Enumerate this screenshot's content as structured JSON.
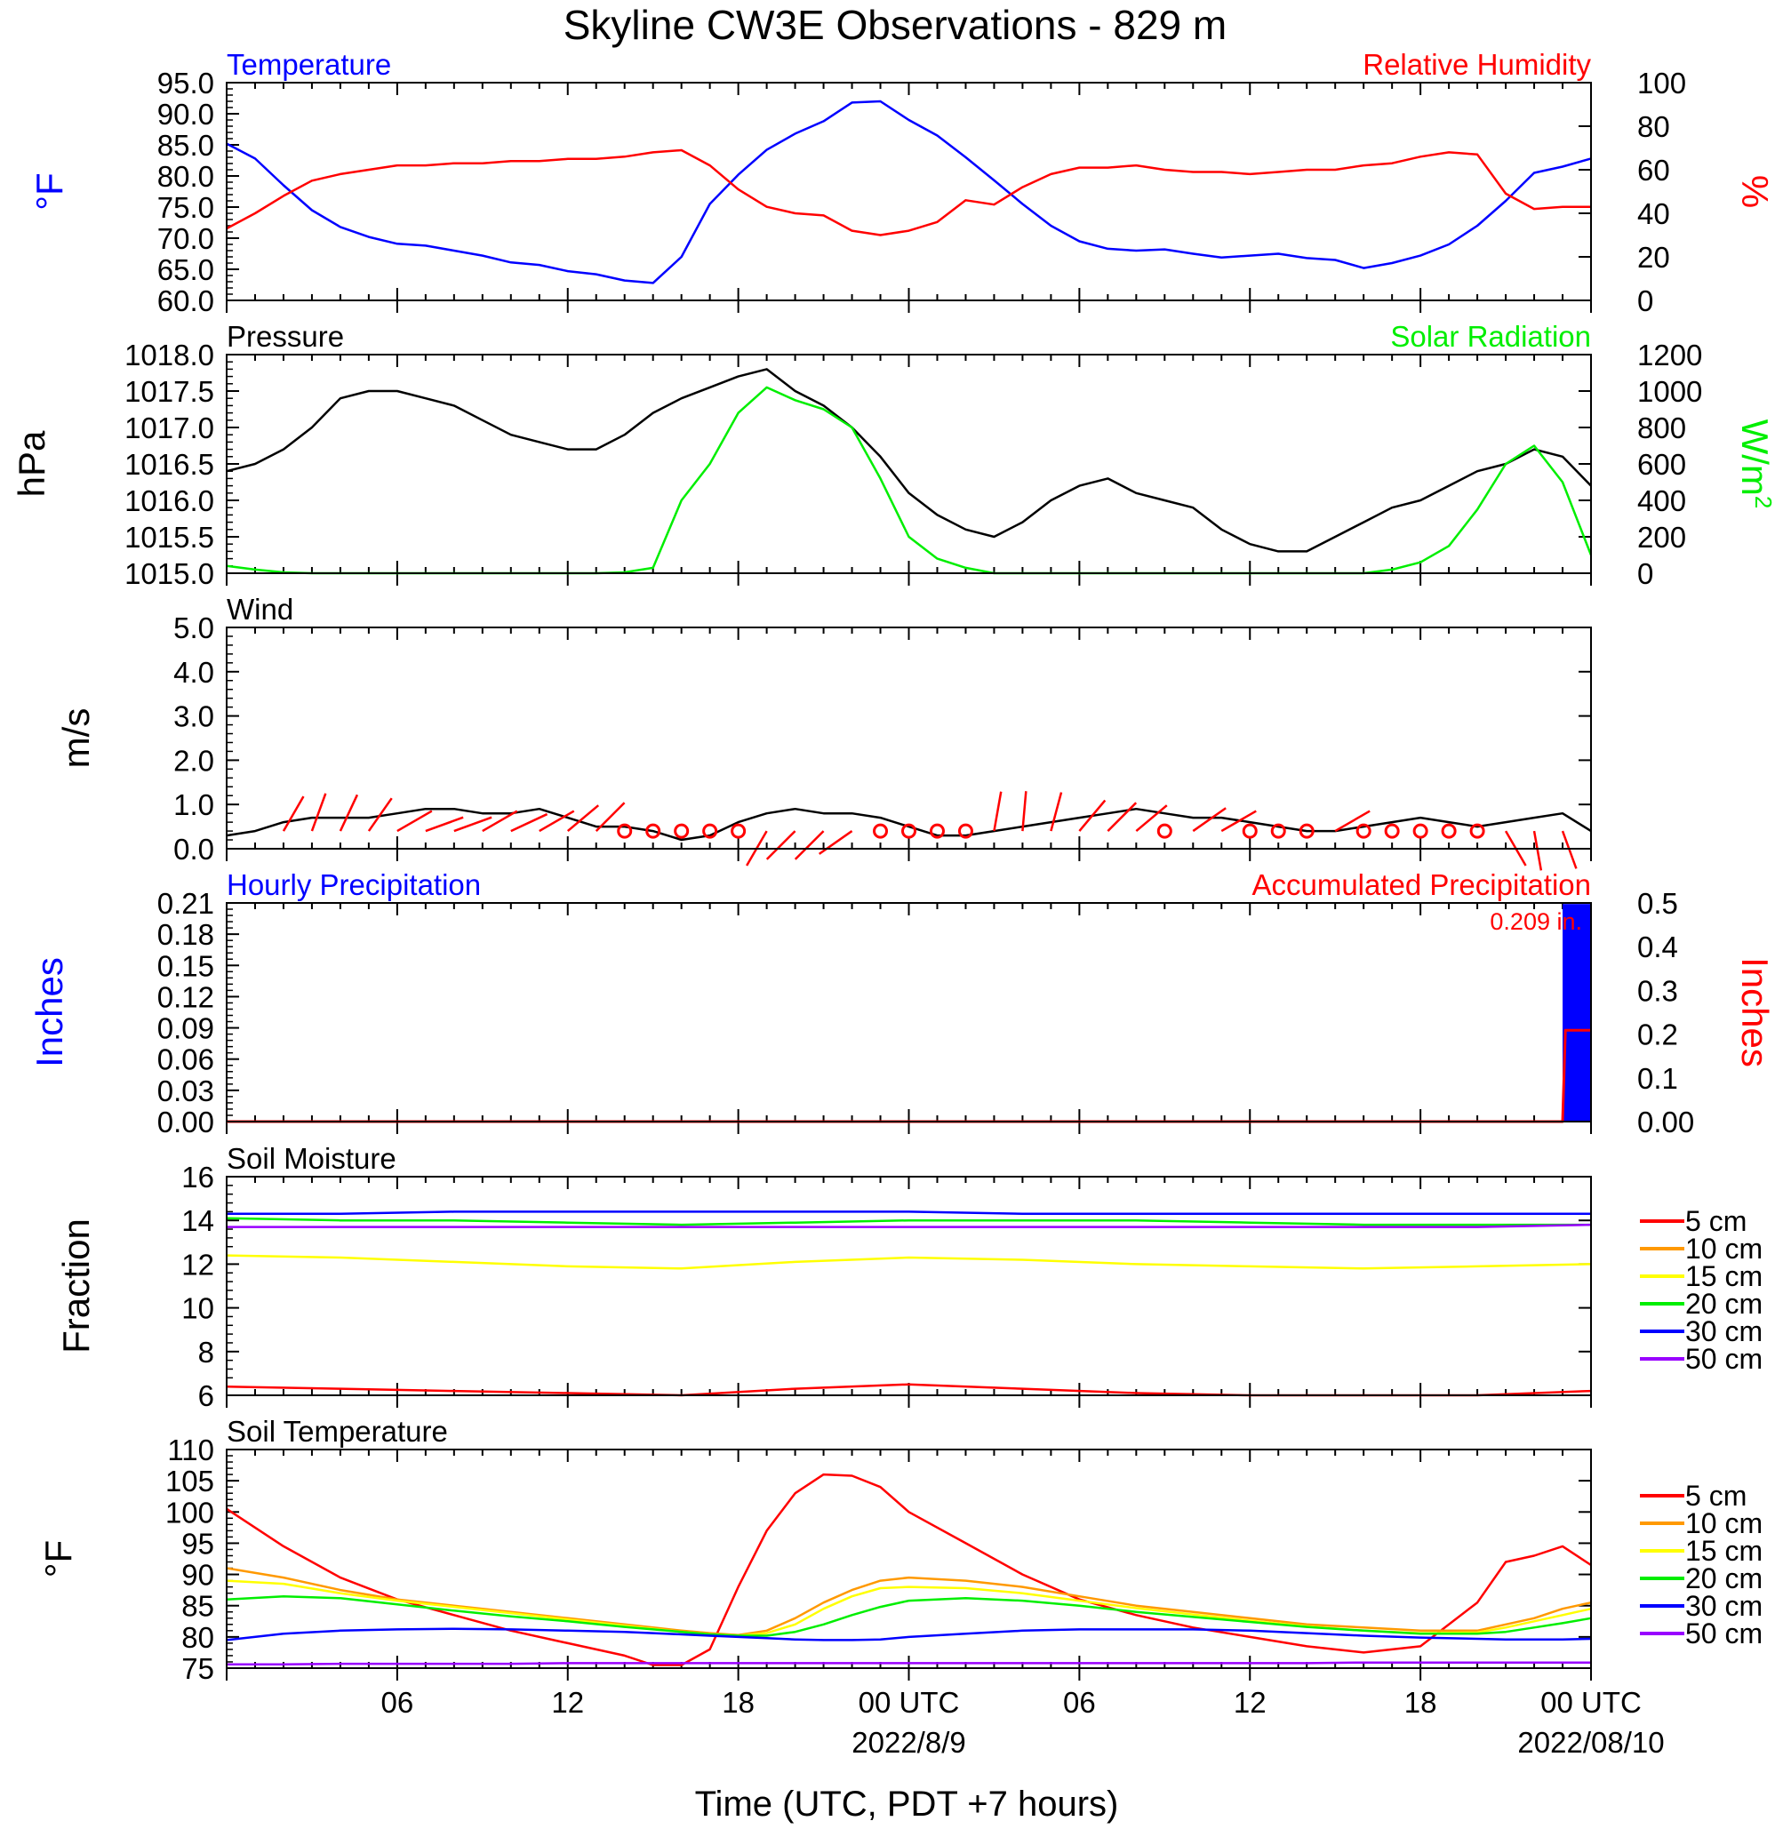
{
  "figure": {
    "title": "Skyline CW3E Observations - 829 m",
    "xlabel": "Time (UTC, PDT +7 hours)",
    "x_tick_labels": [
      "06",
      "12",
      "18",
      "00 UTC",
      "06",
      "12",
      "18",
      "00 UTC"
    ],
    "date_labels": [
      "2022/8/9",
      "2022/08/10"
    ]
  },
  "chart_data": [
    {
      "id": "temp_rh",
      "type": "line",
      "title_left": "Temperature",
      "title_right": "Relative Humidity",
      "ylabel_left": "°F",
      "ylabel_right": "%",
      "ylim_left": [
        60,
        95
      ],
      "ylim_right": [
        0,
        100
      ],
      "yticks_left": [
        "60.0",
        "65.0",
        "70.0",
        "75.0",
        "80.0",
        "85.0",
        "90.0",
        "95.0"
      ],
      "yticks_right": [
        "0",
        "20",
        "40",
        "60",
        "80",
        "100"
      ],
      "x_hours": [
        0,
        1,
        2,
        3,
        4,
        5,
        6,
        7,
        8,
        9,
        10,
        11,
        12,
        13,
        14,
        15,
        16,
        17,
        18,
        19,
        20,
        21,
        22,
        23,
        24,
        25,
        26,
        27,
        28,
        29,
        30,
        31,
        32,
        33,
        34,
        35,
        36,
        37,
        38,
        39,
        40,
        41,
        42,
        43,
        44,
        45,
        46,
        47,
        48
      ],
      "series": [
        {
          "axis": "left",
          "color": "#0000ff",
          "values": [
            85.2,
            82.8,
            78.5,
            74.5,
            71.8,
            70.2,
            69.1,
            68.8,
            68.0,
            67.2,
            66.1,
            65.7,
            64.7,
            64.2,
            63.2,
            62.8,
            67.0,
            75.5,
            80.2,
            84.2,
            86.8,
            88.8,
            91.8,
            92.0,
            89.0,
            86.5,
            83.0,
            79.3,
            75.5,
            72.0,
            69.5,
            68.3,
            68.0,
            68.2,
            67.5,
            66.9,
            67.2,
            67.5,
            66.8,
            66.5,
            65.2,
            66.0,
            67.2,
            69.0,
            72.0,
            76.0,
            80.5,
            81.5,
            82.8
          ]
        },
        {
          "axis": "right",
          "color": "#ff0000",
          "values": [
            33,
            40,
            48,
            55,
            58,
            60,
            62,
            62,
            63,
            63,
            64,
            64,
            65,
            65,
            66,
            68,
            69,
            62,
            51,
            43,
            40,
            39,
            32,
            30,
            32,
            36,
            46,
            44,
            52,
            58,
            61,
            61,
            62,
            60,
            59,
            59,
            58,
            59,
            60,
            60,
            62,
            63,
            66,
            68,
            67,
            49,
            42,
            43,
            43
          ]
        }
      ]
    },
    {
      "id": "pressure_solar",
      "type": "line",
      "title_left": "Pressure",
      "title_right": "Solar Radiation",
      "ylabel_left": "hPa",
      "ylabel_right": "W/m",
      "ylabel_right_sup": "2",
      "ylim_left": [
        1015.0,
        1018.0
      ],
      "ylim_right": [
        0,
        1200
      ],
      "yticks_left": [
        "1015.0",
        "1015.5",
        "1016.0",
        "1016.5",
        "1017.0",
        "1017.5",
        "1018.0"
      ],
      "yticks_right": [
        "0",
        "200",
        "400",
        "600",
        "800",
        "1000",
        "1200"
      ],
      "x_hours": [
        0,
        1,
        2,
        3,
        4,
        5,
        6,
        7,
        8,
        9,
        10,
        11,
        12,
        13,
        14,
        15,
        16,
        17,
        18,
        19,
        20,
        21,
        22,
        23,
        24,
        25,
        26,
        27,
        28,
        29,
        30,
        31,
        32,
        33,
        34,
        35,
        36,
        37,
        38,
        39,
        40,
        41,
        42,
        43,
        44,
        45,
        46,
        47,
        48
      ],
      "series": [
        {
          "axis": "left",
          "color": "#000000",
          "values": [
            1016.4,
            1016.5,
            1016.7,
            1017.0,
            1017.4,
            1017.5,
            1017.5,
            1017.4,
            1017.3,
            1017.1,
            1016.9,
            1016.8,
            1016.7,
            1016.7,
            1016.9,
            1017.2,
            1017.4,
            1017.55,
            1017.7,
            1017.8,
            1017.5,
            1017.3,
            1017.0,
            1016.6,
            1016.1,
            1015.8,
            1015.6,
            1015.5,
            1015.7,
            1016.0,
            1016.2,
            1016.3,
            1016.1,
            1016.0,
            1015.9,
            1015.6,
            1015.4,
            1015.3,
            1015.3,
            1015.5,
            1015.7,
            1015.9,
            1016.0,
            1016.2,
            1016.4,
            1016.5,
            1016.7,
            1016.6,
            1016.2
          ]
        },
        {
          "axis": "right",
          "color": "#00ee00",
          "values": [
            40,
            20,
            5,
            0,
            0,
            0,
            0,
            0,
            0,
            0,
            0,
            0,
            0,
            0,
            5,
            30,
            400,
            600,
            880,
            1020,
            950,
            900,
            800,
            520,
            200,
            80,
            30,
            0,
            0,
            0,
            0,
            0,
            0,
            0,
            0,
            0,
            0,
            0,
            0,
            0,
            0,
            20,
            60,
            150,
            350,
            600,
            700,
            500,
            100
          ]
        }
      ]
    },
    {
      "id": "wind",
      "type": "line",
      "title_left": "Wind",
      "ylabel_left": "m/s",
      "ylim_left": [
        0,
        5
      ],
      "yticks_left": [
        "0.0",
        "1.0",
        "2.0",
        "3.0",
        "4.0",
        "5.0"
      ],
      "x_hours": [
        0,
        1,
        2,
        3,
        4,
        5,
        6,
        7,
        8,
        9,
        10,
        11,
        12,
        13,
        14,
        15,
        16,
        17,
        18,
        19,
        20,
        21,
        22,
        23,
        24,
        25,
        26,
        27,
        28,
        29,
        30,
        31,
        32,
        33,
        34,
        35,
        36,
        37,
        38,
        39,
        40,
        41,
        42,
        43,
        44,
        45,
        46,
        47,
        48
      ],
      "series": [
        {
          "axis": "left",
          "color": "#000000",
          "values": [
            0.3,
            0.4,
            0.6,
            0.7,
            0.7,
            0.7,
            0.8,
            0.9,
            0.9,
            0.8,
            0.8,
            0.9,
            0.7,
            0.5,
            0.5,
            0.4,
            0.2,
            0.3,
            0.6,
            0.8,
            0.9,
            0.8,
            0.8,
            0.7,
            0.5,
            0.3,
            0.3,
            0.4,
            0.5,
            0.6,
            0.7,
            0.8,
            0.9,
            0.8,
            0.7,
            0.7,
            0.6,
            0.5,
            0.4,
            0.4,
            0.5,
            0.6,
            0.7,
            0.6,
            0.5,
            0.6,
            0.7,
            0.8,
            0.4
          ]
        }
      ],
      "barbs_x_hours": [
        2,
        3,
        4,
        5,
        6,
        7,
        8,
        9,
        10,
        11,
        12,
        13,
        14,
        15,
        16,
        17,
        18,
        19,
        20,
        21,
        22,
        23,
        24,
        25,
        26,
        27,
        28,
        29,
        30,
        31,
        32,
        33,
        34,
        35,
        36,
        37,
        38,
        39,
        40,
        41,
        42,
        43,
        44,
        45,
        46,
        47
      ],
      "barbs_deg": [
        30,
        20,
        25,
        35,
        60,
        70,
        70,
        60,
        65,
        60,
        50,
        45,
        45,
        0,
        0,
        0,
        0,
        210,
        225,
        225,
        235,
        0,
        0,
        0,
        0,
        10,
        5,
        15,
        40,
        45,
        50,
        0,
        55,
        60,
        0,
        0,
        0,
        60,
        0,
        0,
        0,
        0,
        0,
        150,
        170,
        160
      ],
      "barbs_calm": [
        false,
        false,
        false,
        false,
        false,
        false,
        false,
        false,
        false,
        false,
        false,
        false,
        true,
        true,
        true,
        true,
        true,
        false,
        false,
        false,
        false,
        true,
        true,
        true,
        true,
        false,
        false,
        false,
        false,
        false,
        false,
        true,
        false,
        false,
        true,
        true,
        true,
        false,
        true,
        true,
        true,
        true,
        true,
        false,
        false,
        false
      ]
    },
    {
      "id": "precip",
      "type": "bar",
      "title_left": "Hourly Precipitation",
      "title_right": "Accumulated Precipitation",
      "ylabel_left": "Inches",
      "ylabel_right": "Inches",
      "ylim_left": [
        0,
        0.21
      ],
      "ylim_right": [
        0,
        0.5
      ],
      "yticks_left": [
        "0.00",
        "0.03",
        "0.06",
        "0.09",
        "0.12",
        "0.15",
        "0.18",
        "0.21"
      ],
      "yticks_right": [
        "0.00",
        "0.1",
        "0.2",
        "0.3",
        "0.4",
        "0.5"
      ],
      "hourly_bar": {
        "start_hour": 47,
        "end_hour": 48,
        "value": 0.209,
        "color": "#0000ff"
      },
      "accumulated": {
        "color": "#ff0000",
        "x_hours": [
          0,
          47,
          47.1,
          48
        ],
        "values": [
          0,
          0,
          0.209,
          0.209
        ]
      },
      "annotation": "0.209 in."
    },
    {
      "id": "soil_moisture",
      "type": "line",
      "title_left": "Soil Moisture",
      "ylabel_left": "Fraction",
      "ylim_left": [
        6,
        16
      ],
      "yticks_left": [
        "6",
        "8",
        "10",
        "12",
        "14",
        "16"
      ],
      "x_hours": [
        0,
        4,
        8,
        12,
        16,
        20,
        24,
        28,
        32,
        36,
        40,
        44,
        48
      ],
      "series": [
        {
          "name": "5 cm",
          "color": "#ff0000",
          "values": [
            6.4,
            6.3,
            6.2,
            6.1,
            6.0,
            6.3,
            6.5,
            6.3,
            6.1,
            6.0,
            6.0,
            6.0,
            6.2
          ]
        },
        {
          "name": "10 cm",
          "color": "#ff9900",
          "values": [
            null,
            null,
            null,
            null,
            null,
            null,
            null,
            null,
            null,
            null,
            null,
            null,
            null
          ]
        },
        {
          "name": "15 cm",
          "color": "#ffff00",
          "values": [
            12.4,
            12.3,
            12.1,
            11.9,
            11.8,
            12.1,
            12.3,
            12.2,
            12.0,
            11.9,
            11.8,
            11.9,
            12.0
          ]
        },
        {
          "name": "20 cm",
          "color": "#00ee00",
          "values": [
            14.1,
            14.0,
            14.0,
            13.9,
            13.8,
            13.9,
            14.0,
            14.0,
            14.0,
            13.9,
            13.8,
            13.8,
            13.8
          ]
        },
        {
          "name": "30 cm",
          "color": "#0000ff",
          "values": [
            14.3,
            14.3,
            14.4,
            14.4,
            14.4,
            14.4,
            14.4,
            14.3,
            14.3,
            14.3,
            14.3,
            14.3,
            14.3
          ]
        },
        {
          "name": "50 cm",
          "color": "#9900ff",
          "values": [
            13.7,
            13.7,
            13.7,
            13.7,
            13.7,
            13.7,
            13.7,
            13.7,
            13.7,
            13.7,
            13.7,
            13.7,
            13.8
          ]
        }
      ]
    },
    {
      "id": "soil_temp",
      "type": "line",
      "title_left": "Soil Temperature",
      "ylabel_left": "°F",
      "ylim_left": [
        75,
        110
      ],
      "yticks_left": [
        "75",
        "80",
        "85",
        "90",
        "95",
        "100",
        "105",
        "110"
      ],
      "x_hours": [
        0,
        2,
        4,
        6,
        8,
        10,
        12,
        14,
        15,
        16,
        17,
        18,
        19,
        20,
        21,
        22,
        23,
        24,
        26,
        28,
        30,
        32,
        34,
        36,
        38,
        40,
        42,
        44,
        45,
        46,
        47,
        48
      ],
      "series": [
        {
          "name": "5 cm",
          "color": "#ff0000",
          "values": [
            100.5,
            94.5,
            89.5,
            86.0,
            83.5,
            81.0,
            79.0,
            77.0,
            75.5,
            75.5,
            78.0,
            88.0,
            97.0,
            103.0,
            106.0,
            105.8,
            104.0,
            100.0,
            95.0,
            90.0,
            86.0,
            83.5,
            81.5,
            80.0,
            78.5,
            77.5,
            78.5,
            85.5,
            92.0,
            93.0,
            94.5,
            91.5
          ]
        },
        {
          "name": "10 cm",
          "color": "#ff9900",
          "values": [
            91.0,
            89.5,
            87.5,
            86.0,
            85.0,
            84.0,
            83.0,
            82.0,
            81.5,
            81.0,
            80.6,
            80.3,
            81.0,
            83.0,
            85.5,
            87.5,
            89.0,
            89.5,
            89.0,
            88.0,
            86.5,
            85.0,
            84.0,
            83.0,
            82.0,
            81.5,
            81.0,
            81.0,
            82.0,
            83.0,
            84.5,
            85.5
          ]
        },
        {
          "name": "15 cm",
          "color": "#ffff00",
          "values": [
            89.0,
            88.5,
            87.0,
            85.8,
            84.8,
            83.8,
            82.8,
            81.8,
            81.3,
            80.8,
            80.4,
            80.2,
            80.6,
            82.0,
            84.5,
            86.5,
            87.8,
            88.0,
            87.8,
            87.0,
            85.8,
            84.6,
            83.6,
            82.6,
            81.7,
            81.0,
            80.6,
            80.7,
            81.5,
            82.5,
            83.5,
            84.5
          ]
        },
        {
          "name": "20 cm",
          "color": "#00ee00",
          "values": [
            86.0,
            86.5,
            86.2,
            85.2,
            84.2,
            83.3,
            82.5,
            81.6,
            81.2,
            80.8,
            80.4,
            80.2,
            80.2,
            80.8,
            82.0,
            83.5,
            84.8,
            85.8,
            86.2,
            85.8,
            85.0,
            84.0,
            83.2,
            82.4,
            81.6,
            81.0,
            80.5,
            80.5,
            80.8,
            81.5,
            82.2,
            83.0
          ]
        },
        {
          "name": "30 cm",
          "color": "#0000ff",
          "values": [
            79.5,
            80.5,
            81.0,
            81.2,
            81.3,
            81.2,
            81.0,
            80.8,
            80.6,
            80.4,
            80.2,
            80.0,
            79.8,
            79.6,
            79.5,
            79.5,
            79.6,
            80.0,
            80.5,
            81.0,
            81.2,
            81.2,
            81.2,
            81.0,
            80.6,
            80.2,
            79.9,
            79.7,
            79.6,
            79.6,
            79.6,
            79.7
          ]
        },
        {
          "name": "50 cm",
          "color": "#9900ff",
          "values": [
            75.6,
            75.6,
            75.7,
            75.7,
            75.7,
            75.7,
            75.8,
            75.8,
            75.8,
            75.8,
            75.8,
            75.8,
            75.8,
            75.8,
            75.8,
            75.8,
            75.8,
            75.8,
            75.8,
            75.8,
            75.8,
            75.8,
            75.8,
            75.8,
            75.8,
            75.9,
            75.9,
            75.9,
            75.9,
            75.9,
            75.9,
            75.9
          ]
        }
      ]
    }
  ]
}
